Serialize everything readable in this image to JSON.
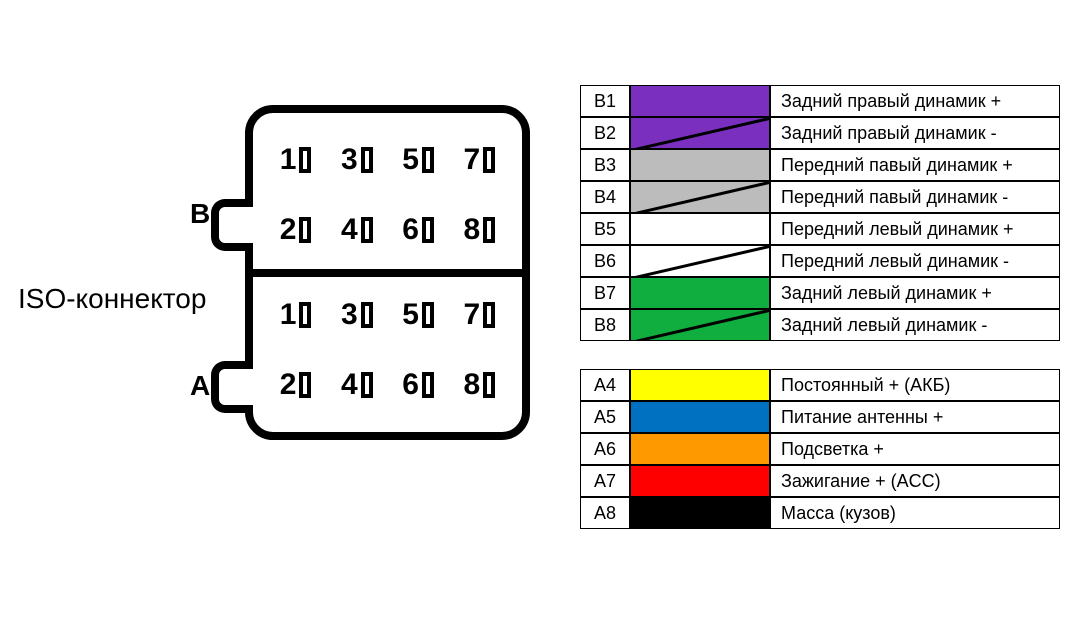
{
  "title": "ISO-коннектор",
  "sectionLabels": {
    "B": "B",
    "A": "A"
  },
  "pinNumbers": [
    1,
    3,
    5,
    7,
    2,
    4,
    6,
    8
  ],
  "text_color": "#000000",
  "background_color": "#ffffff",
  "legend": {
    "B": [
      {
        "pin": "B1",
        "color": "#7b2fbf",
        "stripe": false,
        "desc": "Задний правый динамик +"
      },
      {
        "pin": "B2",
        "color": "#7b2fbf",
        "stripe": true,
        "desc": "Задний правый динамик -"
      },
      {
        "pin": "B3",
        "color": "#bcbcbc",
        "stripe": false,
        "desc": "Передний павый динамик +"
      },
      {
        "pin": "B4",
        "color": "#bcbcbc",
        "stripe": true,
        "desc": "Передний павый динамик -"
      },
      {
        "pin": "B5",
        "color": "#ffffff",
        "stripe": false,
        "desc": "Передний левый динамик +"
      },
      {
        "pin": "B6",
        "color": "#ffffff",
        "stripe": true,
        "desc": "Передний левый динамик -"
      },
      {
        "pin": "B7",
        "color": "#0fae3e",
        "stripe": false,
        "desc": "Задний левый динамик +"
      },
      {
        "pin": "B8",
        "color": "#0fae3e",
        "stripe": true,
        "desc": "Задний левый динамик -"
      }
    ],
    "A": [
      {
        "pin": "A4",
        "color": "#ffff00",
        "stripe": false,
        "desc": "Постоянный + (АКБ)"
      },
      {
        "pin": "A5",
        "color": "#0070c0",
        "stripe": false,
        "desc": "Питание антенны +"
      },
      {
        "pin": "A6",
        "color": "#ff9900",
        "stripe": false,
        "desc": "Подсветка +"
      },
      {
        "pin": "A7",
        "color": "#ff0000",
        "stripe": false,
        "desc": "Зажигание + (ACC)"
      },
      {
        "pin": "A8",
        "color": "#000000",
        "stripe": false,
        "desc": "Масса (кузов)"
      }
    ]
  }
}
